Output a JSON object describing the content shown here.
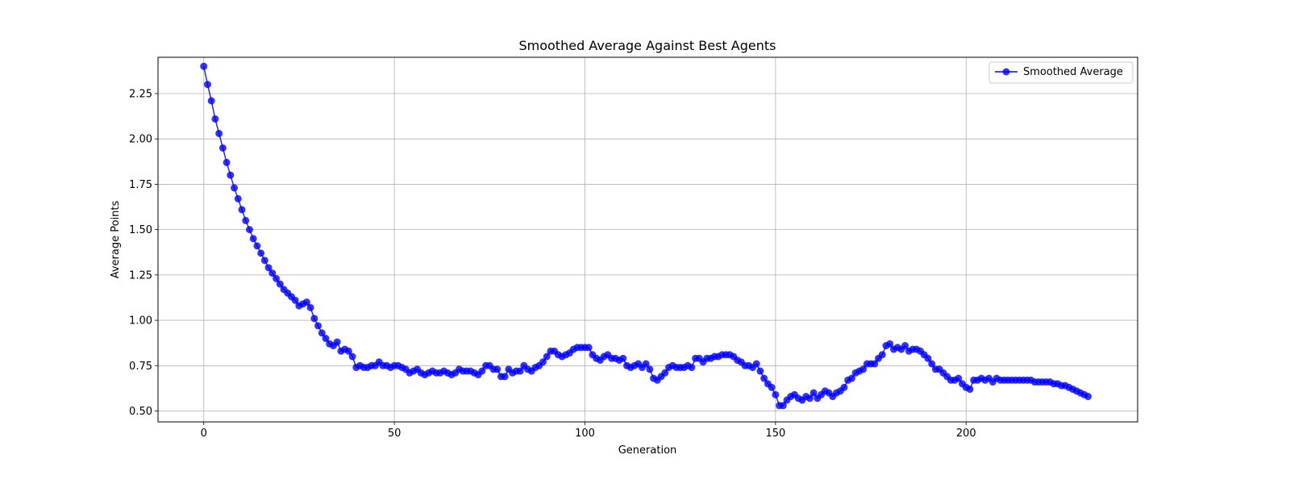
{
  "chart_data": {
    "type": "line",
    "title": "Smoothed Average Against Best Agents",
    "xlabel": "Generation",
    "ylabel": "Average Points",
    "xlim": [
      -12,
      245
    ],
    "ylim": [
      0.44,
      2.45
    ],
    "xticks": [
      "0",
      "50",
      "100",
      "150",
      "200"
    ],
    "yticks": [
      "0.50",
      "0.75",
      "1.00",
      "1.25",
      "1.50",
      "1.75",
      "2.00",
      "2.25"
    ],
    "grid": true,
    "legend_position": "top-right",
    "marker": "circle",
    "series": [
      {
        "name": "Smoothed Average",
        "color": "#0000ff",
        "x_start": 0,
        "x_step": 1,
        "values": [
          2.4,
          2.3,
          2.21,
          2.11,
          2.03,
          1.95,
          1.87,
          1.8,
          1.73,
          1.67,
          1.61,
          1.55,
          1.5,
          1.45,
          1.41,
          1.37,
          1.33,
          1.29,
          1.26,
          1.23,
          1.2,
          1.17,
          1.15,
          1.13,
          1.11,
          1.08,
          1.09,
          1.1,
          1.07,
          1.01,
          0.97,
          0.93,
          0.9,
          0.87,
          0.86,
          0.88,
          0.83,
          0.84,
          0.83,
          0.8,
          0.74,
          0.75,
          0.74,
          0.74,
          0.75,
          0.75,
          0.77,
          0.75,
          0.75,
          0.74,
          0.75,
          0.75,
          0.74,
          0.73,
          0.71,
          0.72,
          0.73,
          0.71,
          0.7,
          0.71,
          0.72,
          0.71,
          0.71,
          0.72,
          0.71,
          0.7,
          0.71,
          0.73,
          0.72,
          0.72,
          0.72,
          0.71,
          0.7,
          0.72,
          0.75,
          0.75,
          0.73,
          0.73,
          0.69,
          0.69,
          0.73,
          0.71,
          0.72,
          0.72,
          0.75,
          0.73,
          0.72,
          0.74,
          0.75,
          0.77,
          0.8,
          0.83,
          0.83,
          0.81,
          0.8,
          0.81,
          0.82,
          0.84,
          0.85,
          0.85,
          0.85,
          0.85,
          0.81,
          0.79,
          0.78,
          0.8,
          0.81,
          0.79,
          0.79,
          0.78,
          0.79,
          0.75,
          0.74,
          0.75,
          0.76,
          0.74,
          0.76,
          0.73,
          0.68,
          0.67,
          0.69,
          0.71,
          0.74,
          0.75,
          0.74,
          0.74,
          0.74,
          0.75,
          0.74,
          0.79,
          0.79,
          0.77,
          0.79,
          0.79,
          0.8,
          0.8,
          0.81,
          0.81,
          0.81,
          0.8,
          0.78,
          0.77,
          0.75,
          0.75,
          0.74,
          0.76,
          0.72,
          0.68,
          0.65,
          0.63,
          0.59,
          0.53,
          0.53,
          0.56,
          0.58,
          0.59,
          0.57,
          0.56,
          0.58,
          0.57,
          0.6,
          0.57,
          0.59,
          0.61,
          0.6,
          0.58,
          0.6,
          0.61,
          0.63,
          0.67,
          0.68,
          0.71,
          0.72,
          0.73,
          0.76,
          0.76,
          0.76,
          0.79,
          0.81,
          0.86,
          0.87,
          0.84,
          0.85,
          0.84,
          0.86,
          0.83,
          0.84,
          0.84,
          0.83,
          0.81,
          0.79,
          0.76,
          0.73,
          0.73,
          0.71,
          0.69,
          0.67,
          0.67,
          0.68,
          0.65,
          0.63,
          0.62,
          0.67,
          0.67,
          0.68,
          0.67,
          0.68,
          0.66,
          0.68,
          0.67,
          0.67,
          0.67,
          0.67,
          0.67,
          0.67,
          0.67,
          0.67,
          0.67,
          0.66,
          0.66,
          0.66,
          0.66,
          0.66,
          0.65,
          0.65,
          0.64,
          0.64,
          0.63,
          0.62,
          0.61,
          0.6,
          0.59,
          0.58
        ]
      }
    ]
  }
}
